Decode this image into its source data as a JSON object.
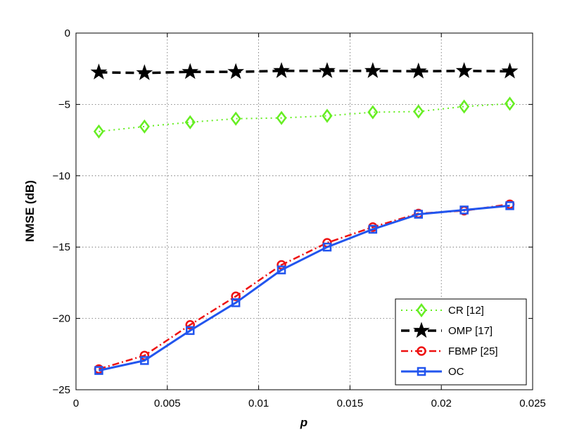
{
  "chart_data": {
    "type": "line",
    "title": "",
    "xlabel": "p",
    "ylabel": "NMSE (dB)",
    "xlim": [
      0,
      0.025
    ],
    "ylim": [
      -25,
      0
    ],
    "xticks": [
      0,
      0.005,
      0.01,
      0.015,
      0.02,
      0.025
    ],
    "xtick_labels": [
      "0",
      "0.005",
      "0.01",
      "0.015",
      "0.02",
      "0.025"
    ],
    "yticks": [
      0,
      -5,
      -10,
      -15,
      -20,
      -25
    ],
    "ytick_labels": [
      "0",
      "−5",
      "−10",
      "−15",
      "−20",
      "−25"
    ],
    "grid": true,
    "legend_position": "bottom-right",
    "x": [
      0.00125,
      0.00375,
      0.00625,
      0.00875,
      0.01125,
      0.01375,
      0.01625,
      0.01875,
      0.02125,
      0.02375
    ],
    "series": [
      {
        "name": "CR [12]",
        "color": "#66ee22",
        "marker": "diamond",
        "line_style": "dotted",
        "values": [
          -6.9,
          -6.55,
          -6.25,
          -6.0,
          -5.95,
          -5.8,
          -5.55,
          -5.5,
          -5.15,
          -4.95
        ]
      },
      {
        "name": "OMP [17]",
        "color": "#000000",
        "marker": "star",
        "line_style": "dashed",
        "values": [
          -2.75,
          -2.8,
          -2.72,
          -2.72,
          -2.65,
          -2.65,
          -2.65,
          -2.68,
          -2.65,
          -2.68
        ]
      },
      {
        "name": "FBMP [25]",
        "color": "#ee1111",
        "marker": "circle",
        "line_style": "dash-dot",
        "values": [
          -23.55,
          -22.6,
          -20.45,
          -18.45,
          -16.25,
          -14.7,
          -13.6,
          -12.65,
          -12.45,
          -12.0
        ]
      },
      {
        "name": "OC",
        "color": "#2255ee",
        "marker": "square",
        "line_style": "solid",
        "values": [
          -23.65,
          -22.95,
          -20.85,
          -18.9,
          -16.6,
          -15.0,
          -13.75,
          -12.7,
          -12.4,
          -12.1
        ]
      }
    ]
  }
}
